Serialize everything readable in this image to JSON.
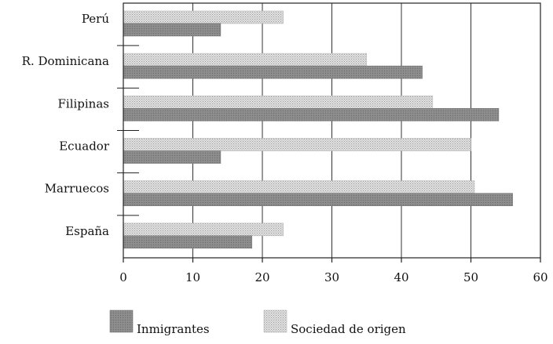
{
  "chart_data": {
    "type": "bar",
    "orientation": "horizontal",
    "categories": [
      "Perú",
      "R. Dominicana",
      "Filipinas",
      "Ecuador",
      "Marruecos",
      "España"
    ],
    "series": [
      {
        "name": "Sociedad de origen",
        "values": [
          23,
          35,
          44.5,
          50,
          50.5,
          23
        ],
        "color": "#cccccc",
        "pattern": "dotted"
      },
      {
        "name": "Inmigrantes",
        "values": [
          14,
          43,
          54,
          14,
          56,
          18.5
        ],
        "color": "#8c8c8c",
        "pattern": "solid"
      }
    ],
    "xlim": [
      0,
      60
    ],
    "xticks": [
      "0",
      "10",
      "20",
      "30",
      "40",
      "50",
      "60"
    ],
    "grid": true,
    "legend": "bottom",
    "title": "",
    "xlabel": "",
    "ylabel": ""
  }
}
